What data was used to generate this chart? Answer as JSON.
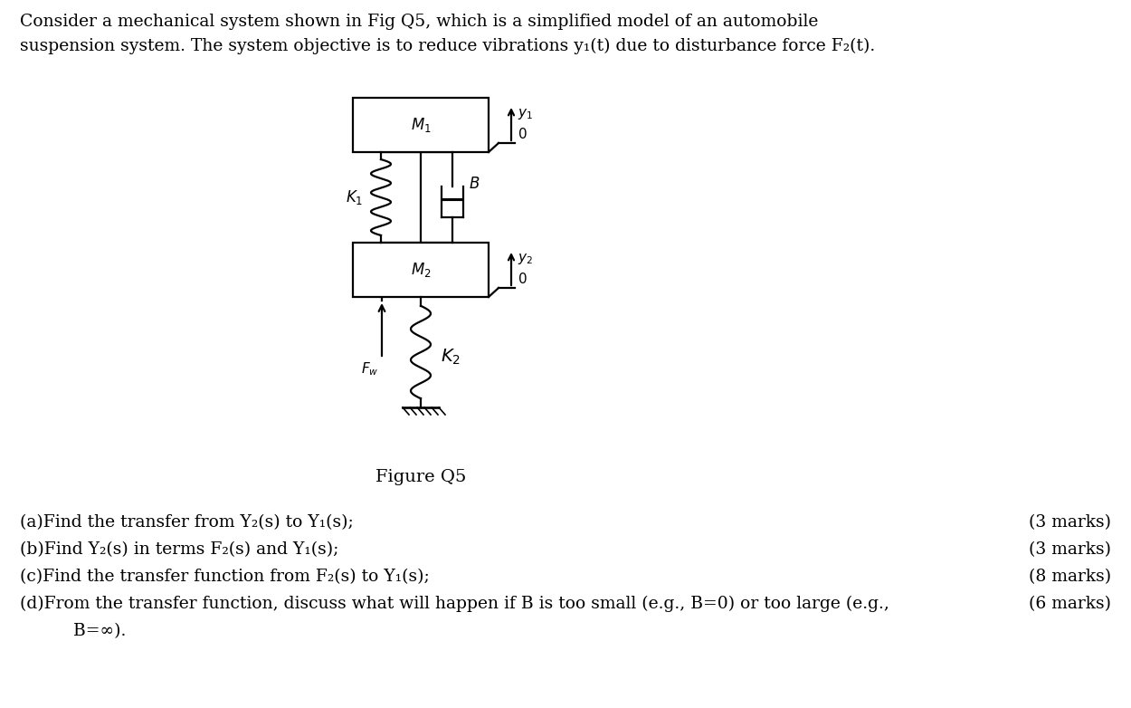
{
  "bg_color": "#ffffff",
  "fig_label": "Figure Q5",
  "header1": "Consider a mechanical system shown in Fig Q5, which is a simplified model of an automobile",
  "header2": "suspension system. The system objective is to reduce vibrations y₁(t) due to disturbance force F₂(t).",
  "m1_label": "$M_1$",
  "m2_label": "$M_2$",
  "k1_label": "$K_1$",
  "k2_label": "$K_2$",
  "b_label": "$B$",
  "fw_label": "$F_w$",
  "y1_label": "$y_1$",
  "y2_label": "$y_2$",
  "zero": "$0$",
  "qa": "(a)Find the transfer from Y₂(s) to Y₁(s);",
  "qb": "(b)Find Y₂(s) in terms F₂(s) and Y₁(s);",
  "qc": "(c)Find the transfer function from F₂(s) to Y₁(s);",
  "qd": "(d)From the transfer function, discuss what will happen if B is too small (e.g., B=0) or too large (e.g.,",
  "qd2": "    B=∞).",
  "ma": "(3 marks)",
  "mb": "(3 marks)",
  "mc": "(8 marks)",
  "md": "(6 marks)"
}
